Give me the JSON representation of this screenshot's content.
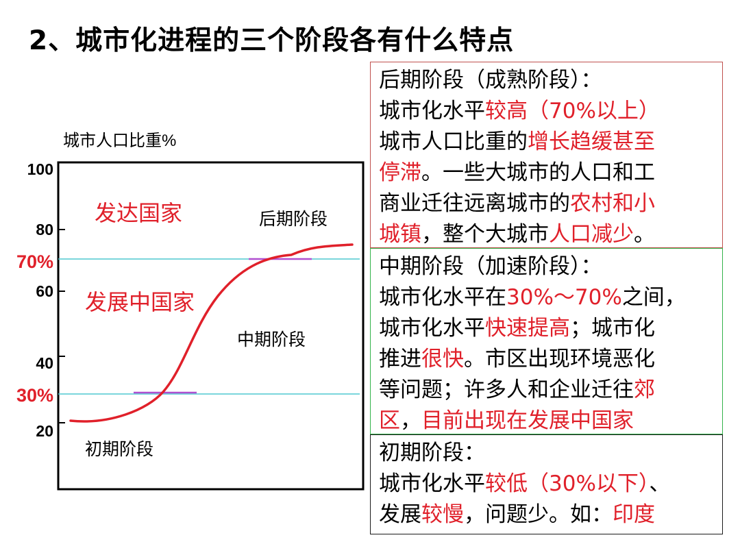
{
  "title": "2、城市化进程的三个阶段各有什么特点",
  "chart": {
    "ylabel": "城市人口比重%",
    "yticks": [
      "100",
      "80",
      "60",
      "40",
      "20"
    ],
    "threshold_labels": [
      "70%",
      "30%"
    ],
    "labels": {
      "developed": "发达国家",
      "developing": "发展中国家",
      "late": "后期阶段",
      "middle": "中期阶段",
      "early": "初期阶段"
    },
    "colors": {
      "curve": "#e0202a",
      "threshold": "#4fc8d0",
      "marker": "#b04fd0",
      "red": "#e0202a"
    }
  },
  "boxes": {
    "late": {
      "l1": "后期阶段（成熟阶段）：",
      "l2a": "城市化水平",
      "l2b": "较高（70%以上）",
      "l3a": "城市人口比重的",
      "l3b": "增长趋缓甚至",
      "l4a": "停滞",
      "l4b": "。一些大城市的人口和工",
      "l5a": "商业迁往远离城市的",
      "l5b": "农村和小",
      "l6a": "城镇",
      "l6b": "，整个大城市",
      "l6c": "人口减少",
      "l6d": "。"
    },
    "middle": {
      "l1": "中期阶段（加速阶段）：",
      "l2a": "城市化水平在",
      "l2b": "30%～70%",
      "l2c": "之间，",
      "l3a": "城市化水平",
      "l3b": "快速提高",
      "l3c": "；城市化",
      "l4a": "推进",
      "l4b": "很快",
      "l4c": "。市区出现环境恶化",
      "l5a": "等问题；许多人和企业迁往",
      "l5b": "郊",
      "l6a": "区",
      "l6b": "，",
      "l6c": "目前出现在发展中国家"
    },
    "early": {
      "l1": "初期阶段：",
      "l2a": "城市化水平",
      "l2b": "较低（30%以下）",
      "l2c": "、",
      "l3a": "发展",
      "l3b": "较慢",
      "l3c": "，问题少。如：",
      "l3d": "印度"
    }
  }
}
